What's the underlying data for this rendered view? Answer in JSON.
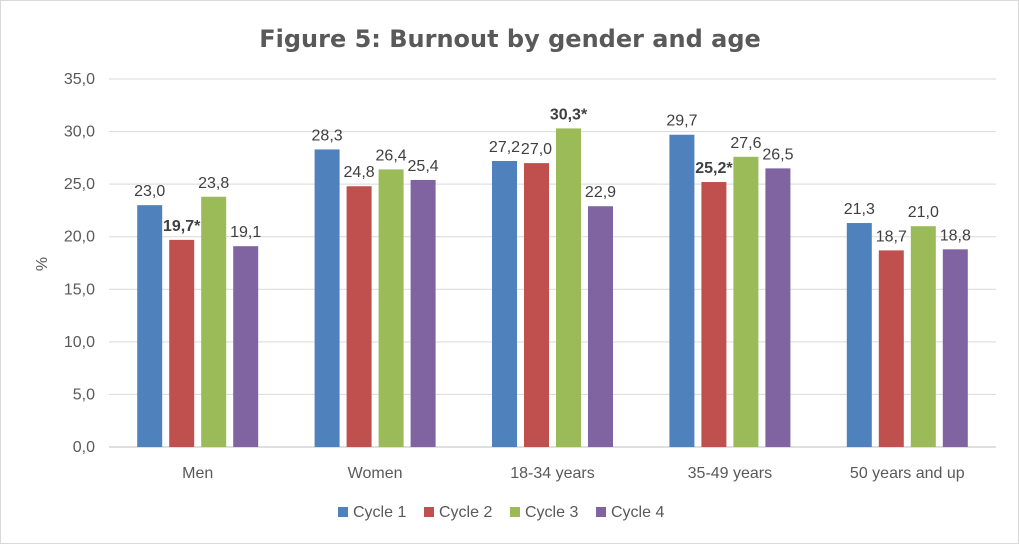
{
  "chart_data": {
    "type": "bar",
    "title": "Figure 5: Burnout by gender and age",
    "xlabel": "",
    "ylabel": "%",
    "ylim": [
      0,
      35
    ],
    "yticks": [
      "0,0",
      "5,0",
      "10,0",
      "15,0",
      "20,0",
      "25,0",
      "30,0",
      "35,0"
    ],
    "categories": [
      "Men",
      "Women",
      "18-34 years",
      "35-49 years",
      "50 years and up"
    ],
    "series": [
      {
        "name": "Cycle 1",
        "color": "#4F81BD",
        "values": [
          23.0,
          28.3,
          27.2,
          29.7,
          21.3
        ],
        "labels": [
          "23,0",
          "28,3",
          "27,2",
          "29,7",
          "21,3"
        ],
        "bold": [
          false,
          false,
          false,
          false,
          false
        ]
      },
      {
        "name": "Cycle 2",
        "color": "#C0504D",
        "values": [
          19.7,
          24.8,
          27.0,
          25.2,
          18.7
        ],
        "labels": [
          "19,7*",
          "24,8",
          "27,0",
          "25,2*",
          "18,7"
        ],
        "bold": [
          true,
          false,
          false,
          true,
          false
        ]
      },
      {
        "name": "Cycle 3",
        "color": "#9BBB59",
        "values": [
          23.8,
          26.4,
          30.3,
          27.6,
          21.0
        ],
        "labels": [
          "23,8",
          "26,4",
          "30,3*",
          "27,6",
          "21,0"
        ],
        "bold": [
          false,
          false,
          true,
          false,
          false
        ]
      },
      {
        "name": "Cycle 4",
        "color": "#8064A2",
        "values": [
          19.1,
          25.4,
          22.9,
          26.5,
          18.8
        ],
        "labels": [
          "19,1",
          "25,4",
          "22,9",
          "26,5",
          "18,8"
        ],
        "bold": [
          false,
          false,
          false,
          false,
          false
        ]
      }
    ],
    "grid": true,
    "legend_position": "bottom"
  }
}
